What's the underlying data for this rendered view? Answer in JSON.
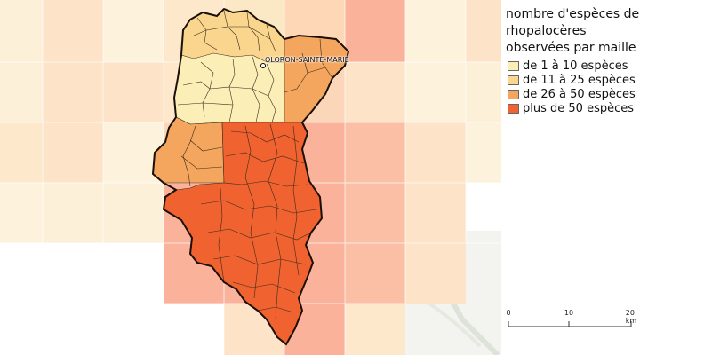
{
  "map": {
    "town_label": "OLORON-SAINTE-MARIE"
  },
  "legend": {
    "title": "nombre d'espèces de\nrhopalocères\nobservées par maille",
    "classes": [
      {
        "label": "de 1 à 10 espèces",
        "color": "#fbeeb6"
      },
      {
        "label": "de 11 à 25 espèces",
        "color": "#f9d58d"
      },
      {
        "label": "de 26 à 50 espèces",
        "color": "#f4a55e"
      },
      {
        "label": "plus de 50 espèces",
        "color": "#f0622f"
      }
    ]
  },
  "scalebar": {
    "ticks": [
      "0",
      "10",
      "20 km"
    ]
  }
}
